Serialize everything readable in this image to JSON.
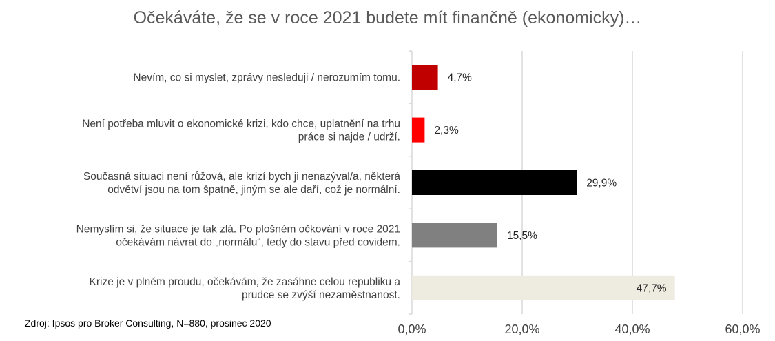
{
  "chart_data": {
    "type": "bar",
    "orientation": "horizontal",
    "title": "Očekáváte, že se v roce 2021 budete mít finančně (ekonomicky)…",
    "categories": [
      [
        "Nevím, co si myslet, zprávy nesleduji / nerozumím tomu."
      ],
      [
        "Není potřeba mluvit o ekonomické krizi, kdo chce, uplatnění na trhu",
        "práce si najde / udrží."
      ],
      [
        "Současná situaci není růžová, ale krizí bych ji nenazýval/a, některá",
        "odvětví jsou na tom špatně, jiným se ale daří, což je normální."
      ],
      [
        "Nemyslím si, že situace je tak zlá. Po plošném očkování v roce 2021",
        "očekávám návrat do „normálu“, tedy do stavu před covidem."
      ],
      [
        "Krize je v plném proudu, očekávám, že zasáhne celou republiku a",
        "prudce se zvýší nezaměstnanost."
      ]
    ],
    "values": [
      4.7,
      2.3,
      29.9,
      15.5,
      47.7
    ],
    "value_labels": [
      "4,7%",
      "2,3%",
      "29,9%",
      "15,5%",
      "47,7%"
    ],
    "colors": [
      "#C00000",
      "#FF0000",
      "#000000",
      "#808080",
      "#EEEBE1"
    ],
    "xlim": [
      0,
      60
    ],
    "xticks": [
      0,
      20,
      40,
      60
    ],
    "xtick_labels": [
      "0,0%",
      "20,0%",
      "40,0%",
      "60,0%"
    ],
    "grid": true,
    "source": "Zdroj: Ipsos pro Broker Consulting, N=880, prosinec 2020"
  }
}
